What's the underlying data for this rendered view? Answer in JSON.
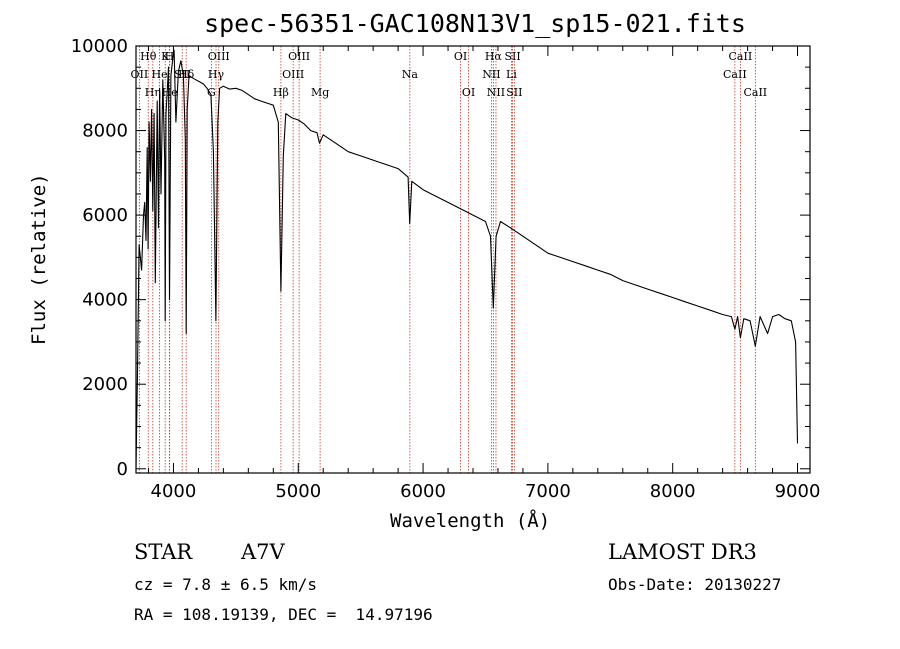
{
  "chart_data": {
    "type": "line",
    "title": "spec-56351-GAC108N13V1_sp15-021.fits",
    "xlabel": "Wavelength (Å)",
    "ylabel": "Flux (relative)",
    "xlim": [
      3700,
      9100
    ],
    "ylim": [
      -100,
      10000
    ],
    "xticks": [
      4000,
      5000,
      6000,
      7000,
      8000,
      9000
    ],
    "yticks": [
      0,
      2000,
      4000,
      6000,
      8000,
      10000
    ],
    "grid": false,
    "series": [
      {
        "name": "spectrum",
        "x": [
          3700,
          3712,
          3725,
          3745,
          3760,
          3770,
          3780,
          3790,
          3797,
          3805,
          3815,
          3825,
          3835,
          3845,
          3855,
          3870,
          3880,
          3889,
          3900,
          3915,
          3930,
          3934,
          3940,
          3960,
          3968,
          3980,
          3995,
          4005,
          4020,
          4040,
          4060,
          4080,
          4095,
          4102,
          4110,
          4125,
          4150,
          4180,
          4210,
          4240,
          4270,
          4300,
          4320,
          4340,
          4355,
          4370,
          4400,
          4450,
          4500,
          4550,
          4600,
          4650,
          4700,
          4750,
          4800,
          4840,
          4861,
          4880,
          4900,
          4950,
          5000,
          5050,
          5100,
          5150,
          5170,
          5200,
          5300,
          5400,
          5500,
          5600,
          5700,
          5800,
          5880,
          5893,
          5910,
          6000,
          6100,
          6200,
          6300,
          6400,
          6500,
          6540,
          6563,
          6585,
          6620,
          6700,
          6800,
          6900,
          7000,
          7100,
          7200,
          7300,
          7400,
          7500,
          7600,
          7700,
          7800,
          7900,
          8000,
          8100,
          8200,
          8300,
          8400,
          8470,
          8498,
          8520,
          8542,
          8570,
          8620,
          8662,
          8700,
          8760,
          8800,
          8850,
          8900,
          8950,
          8985,
          9000
        ],
        "values": [
          0,
          2300,
          5300,
          4700,
          6000,
          6300,
          5400,
          7600,
          5200,
          8200,
          6800,
          8500,
          6100,
          8400,
          4400,
          8700,
          5700,
          9000,
          6500,
          9200,
          7300,
          3500,
          8400,
          9500,
          4000,
          9300,
          9700,
          9900,
          8200,
          9400,
          9650,
          9300,
          7800,
          3200,
          8500,
          9300,
          9250,
          9200,
          9150,
          9100,
          9000,
          8850,
          7500,
          3500,
          8200,
          9000,
          9050,
          8980,
          9000,
          8950,
          8850,
          8750,
          8700,
          8650,
          8600,
          8200,
          4200,
          7400,
          8400,
          8300,
          8250,
          8150,
          8000,
          7950,
          7700,
          7900,
          7700,
          7500,
          7400,
          7300,
          7200,
          7100,
          6900,
          5800,
          6800,
          6600,
          6450,
          6300,
          6150,
          6000,
          5850,
          5500,
          3800,
          5500,
          5850,
          5700,
          5500,
          5300,
          5100,
          5000,
          4900,
          4800,
          4700,
          4600,
          4450,
          4350,
          4250,
          4150,
          4050,
          3950,
          3850,
          3750,
          3650,
          3600,
          3300,
          3600,
          3100,
          3550,
          3500,
          2900,
          3600,
          3200,
          3600,
          3650,
          3550,
          3500,
          3000,
          600
        ]
      }
    ],
    "lines": [
      {
        "name": "OII",
        "wavelength": 3727,
        "label_row": 1
      },
      {
        "name": "Hθ",
        "wavelength": 3798,
        "label_row": 0
      },
      {
        "name": "Hη",
        "wavelength": 3835,
        "label_row": 2
      },
      {
        "name": "He",
        "wavelength": 3889,
        "label_row": 1
      },
      {
        "name": "K",
        "wavelength": 3934,
        "label_row": 0
      },
      {
        "name": "He",
        "wavelength": 3970,
        "label_row": 2
      },
      {
        "name": "H",
        "wavelength": 3968,
        "label_row": 0
      },
      {
        "name": "SII",
        "wavelength": 4070,
        "label_row": 1
      },
      {
        "name": "Hδ",
        "wavelength": 4102,
        "label_row": 1
      },
      {
        "name": "OIII",
        "wavelength": 4363,
        "label_row": 0
      },
      {
        "name": "Hγ",
        "wavelength": 4341,
        "label_row": 1
      },
      {
        "name": "G",
        "wavelength": 4304,
        "label_row": 2
      },
      {
        "name": "Hβ",
        "wavelength": 4861,
        "label_row": 2
      },
      {
        "name": "OIII",
        "wavelength": 5007,
        "label_row": 0
      },
      {
        "name": "OIII",
        "wavelength": 4959,
        "label_row": 1
      },
      {
        "name": "Mg",
        "wavelength": 5175,
        "label_row": 2
      },
      {
        "name": "Na",
        "wavelength": 5894,
        "label_row": 1
      },
      {
        "name": "OI",
        "wavelength": 6300,
        "label_row": 0
      },
      {
        "name": "OI",
        "wavelength": 6364,
        "label_row": 2
      },
      {
        "name": "Hα",
        "wavelength": 6563,
        "label_row": 0
      },
      {
        "name": "NII",
        "wavelength": 6548,
        "label_row": 1
      },
      {
        "name": "NII",
        "wavelength": 6584,
        "label_row": 2
      },
      {
        "name": "SII",
        "wavelength": 6717,
        "label_row": 0
      },
      {
        "name": "Li",
        "wavelength": 6708,
        "label_row": 1
      },
      {
        "name": "SII",
        "wavelength": 6731,
        "label_row": 2
      },
      {
        "name": "CaII",
        "wavelength": 8542,
        "label_row": 0
      },
      {
        "name": "CaII",
        "wavelength": 8498,
        "label_row": 1
      },
      {
        "name": "CaII",
        "wavelength": 8662,
        "label_row": 2
      }
    ]
  },
  "info": {
    "object_class": "STAR",
    "subclass": "A7V",
    "survey": "LAMOST DR3",
    "redshift": "cz = 7.8 ± 6.5 km/s",
    "obs_date": "Obs-Date: 20130227",
    "coords": "RA = 108.19139, DEC =  14.97196"
  }
}
